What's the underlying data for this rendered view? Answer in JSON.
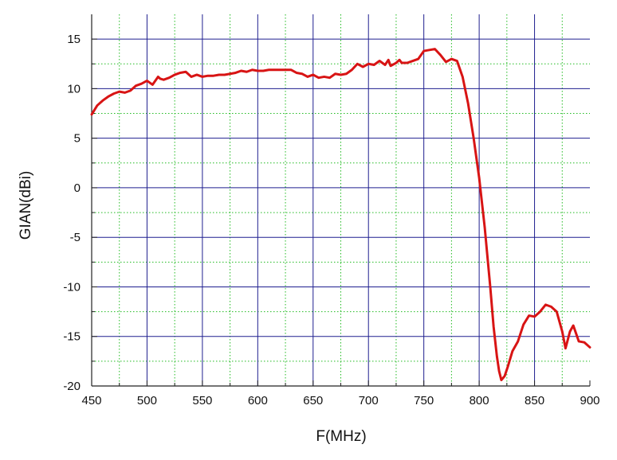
{
  "chart_data": {
    "type": "line",
    "title": "",
    "xlabel": "F(MHz)",
    "ylabel": "GIAN(dBi)",
    "xlim": [
      450,
      900
    ],
    "ylim": [
      -20,
      17.5
    ],
    "x_ticks": [
      450,
      500,
      550,
      600,
      650,
      700,
      750,
      800,
      850,
      900
    ],
    "y_ticks": [
      -20,
      -15,
      -10,
      -5,
      0,
      5,
      10,
      15
    ],
    "grid": {
      "major": true,
      "minor": true,
      "major_color": "#1f1f8f",
      "minor_color": "#22bb22"
    },
    "series": [
      {
        "color": "#d81414",
        "x": [
          450,
          455,
          460,
          465,
          470,
          475,
          480,
          485,
          490,
          495,
          500,
          505,
          510,
          512,
          515,
          520,
          525,
          530,
          535,
          540,
          545,
          550,
          555,
          560,
          565,
          570,
          575,
          580,
          585,
          590,
          595,
          600,
          605,
          610,
          615,
          620,
          625,
          630,
          635,
          640,
          645,
          650,
          655,
          660,
          665,
          670,
          675,
          680,
          685,
          690,
          695,
          700,
          705,
          710,
          715,
          718,
          720,
          725,
          728,
          730,
          735,
          740,
          745,
          750,
          755,
          760,
          765,
          770,
          775,
          780,
          785,
          790,
          795,
          800,
          805,
          810,
          813,
          816,
          818,
          820,
          823,
          826,
          830,
          835,
          840,
          845,
          850,
          855,
          860,
          865,
          870,
          875,
          878,
          882,
          885,
          890,
          895,
          900
        ],
        "y": [
          7.4,
          8.3,
          8.8,
          9.2,
          9.5,
          9.7,
          9.6,
          9.8,
          10.3,
          10.5,
          10.8,
          10.4,
          11.2,
          11.0,
          10.9,
          11.1,
          11.4,
          11.6,
          11.7,
          11.2,
          11.4,
          11.2,
          11.3,
          11.3,
          11.4,
          11.4,
          11.5,
          11.6,
          11.8,
          11.7,
          11.9,
          11.8,
          11.8,
          11.9,
          11.9,
          11.9,
          11.9,
          11.9,
          11.6,
          11.5,
          11.2,
          11.4,
          11.1,
          11.2,
          11.1,
          11.5,
          11.4,
          11.5,
          11.9,
          12.5,
          12.2,
          12.5,
          12.4,
          12.8,
          12.4,
          12.9,
          12.3,
          12.6,
          12.9,
          12.6,
          12.6,
          12.8,
          13.0,
          13.8,
          13.9,
          14.0,
          13.4,
          12.7,
          13.0,
          12.8,
          11.2,
          8.5,
          5.0,
          1.0,
          -4.0,
          -10.0,
          -14.0,
          -17.0,
          -18.5,
          -19.4,
          -19.0,
          -18.0,
          -16.5,
          -15.5,
          -13.8,
          -12.9,
          -13.0,
          -12.5,
          -11.8,
          -12.0,
          -12.5,
          -14.5,
          -16.2,
          -14.5,
          -13.9,
          -15.5,
          -15.6,
          -16.1
        ]
      }
    ]
  }
}
